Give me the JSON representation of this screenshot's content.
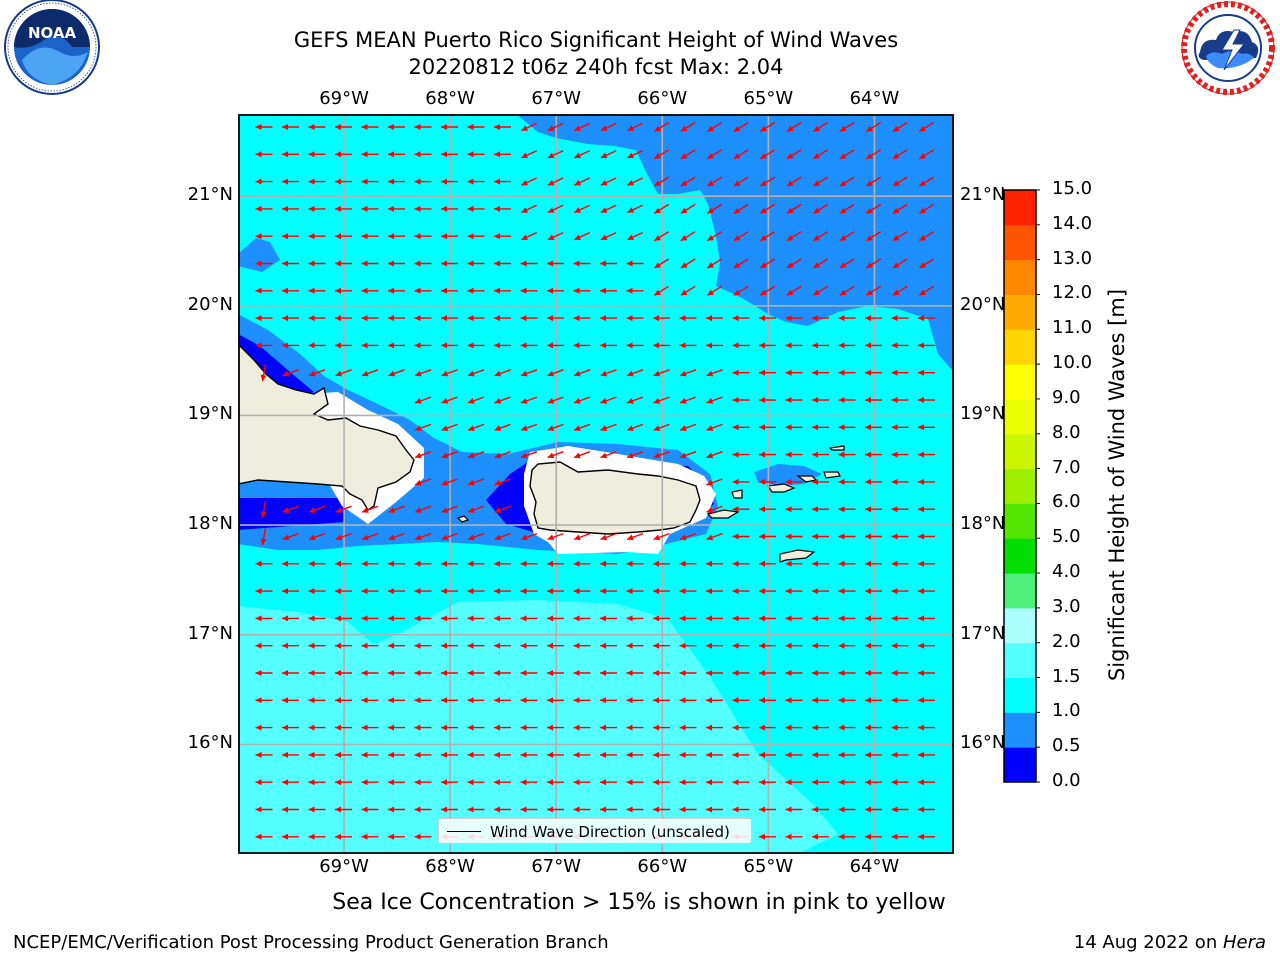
{
  "title_line1": "GEFS MEAN Puerto Rico Significant Height of Wind Waves",
  "title_line2": "20220812 t06z 240h fcst   Max: 2.04",
  "subtitle": "Sea Ice Concentration > 15% is shown in pink to yellow",
  "footer_left": "NCEP/EMC/Verification Post Processing Product Generation Branch",
  "footer_right_prefix": "14 Aug 2022 on ",
  "footer_right_host": "Hera",
  "legend_label": "Wind Wave Direction (unscaled)",
  "logos": {
    "left": {
      "name": "noaa-logo",
      "text": "NOAA",
      "ring_text": "NATIONAL OCEANIC AND ATMOSPHERIC ADMINISTRATION · U.S. DEPARTMENT OF COMMERCE"
    },
    "right": {
      "name": "nws-logo",
      "ring_text": "NATIONAL WEATHER SERVICE"
    }
  },
  "map": {
    "lon_range": [
      -70.0,
      -63.25
    ],
    "lat_range": [
      15.0,
      21.75
    ],
    "lon_ticks": [
      "69°W",
      "68°W",
      "67°W",
      "66°W",
      "65°W",
      "64°W"
    ],
    "lat_ticks": [
      "21°N",
      "20°N",
      "19°N",
      "18°N",
      "17°N",
      "16°N"
    ],
    "grid": true,
    "land_color": "#efedde",
    "vector_color": "#ff0000",
    "wave_direction": "east to west (arrows point west)"
  },
  "colorbar": {
    "label": "Significant Height of Wind Waves [m]",
    "ticks": [
      "15.0",
      "14.0",
      "13.0",
      "12.0",
      "11.0",
      "10.0",
      "9.0",
      "8.0",
      "7.0",
      "6.0",
      "5.0",
      "4.0",
      "3.0",
      "2.0",
      "1.5",
      "1.0",
      "0.5",
      "0.0"
    ],
    "levels": [
      0.0,
      0.5,
      1.0,
      1.5,
      2.0,
      3.0,
      4.0,
      5.0,
      6.0,
      7.0,
      8.0,
      9.0,
      10.0,
      11.0,
      12.0,
      13.0,
      14.0,
      15.0
    ],
    "colors": [
      "#0000ff",
      "#1e8fff",
      "#00ffff",
      "#54ffff",
      "#aaffff",
      "#4cf07a",
      "#00de00",
      "#52e600",
      "#9ef000",
      "#ccf500",
      "#ebff00",
      "#ffff00",
      "#ffd400",
      "#ffaa00",
      "#ff8800",
      "#ff5500",
      "#ff2200"
    ]
  }
}
